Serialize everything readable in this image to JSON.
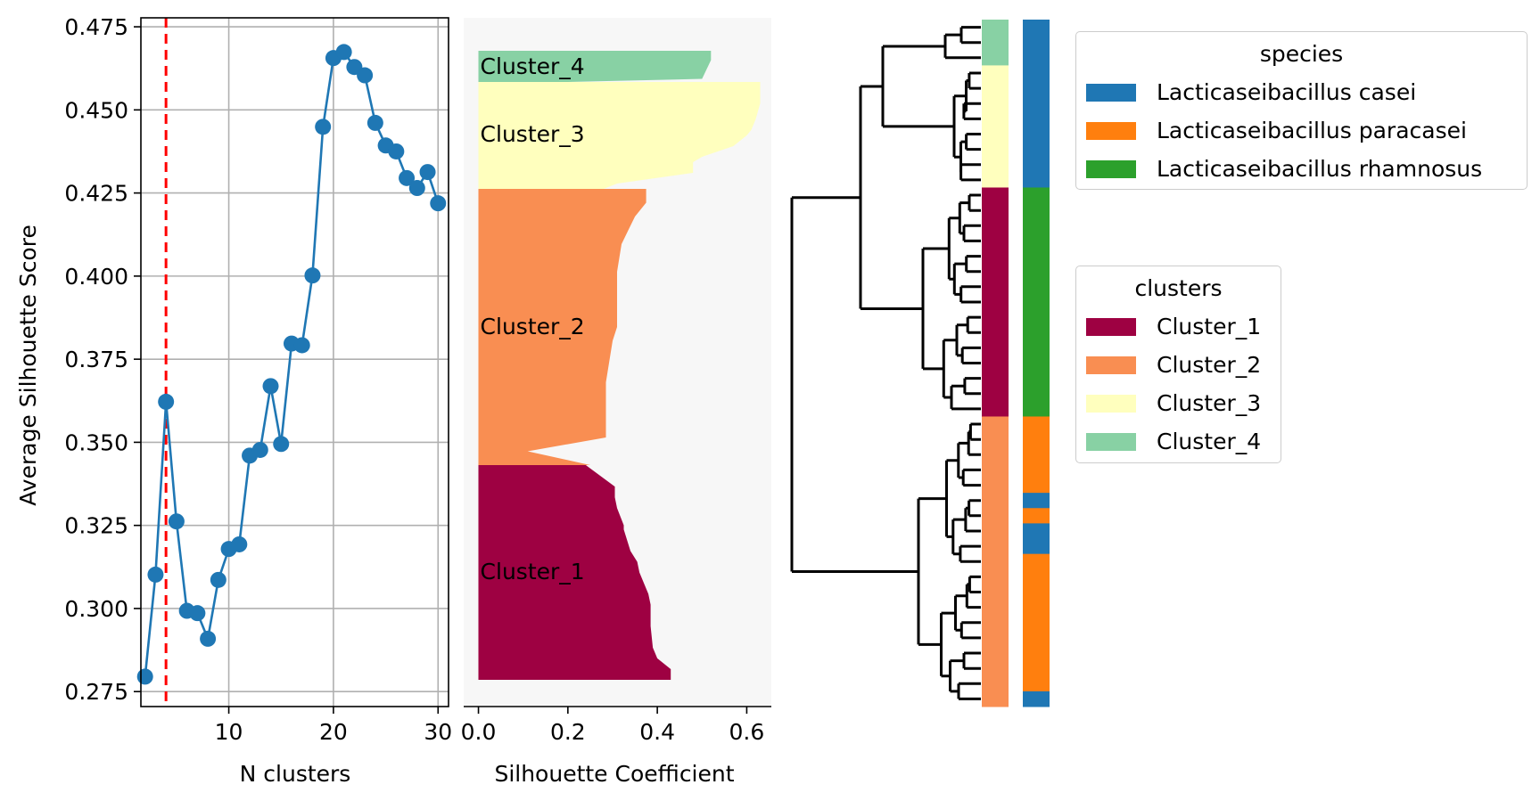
{
  "chart_data": [
    {
      "type": "line",
      "xlabel": "N clusters",
      "ylabel": "Average Silhouette Score",
      "xlim": [
        1.6,
        31.0
      ],
      "ylim": [
        0.2705,
        0.4777
      ],
      "xticks": [
        10,
        20,
        30
      ],
      "yticks": [
        0.275,
        0.3,
        0.325,
        0.35,
        0.375,
        0.4,
        0.425,
        0.45,
        0.475
      ],
      "grid": true,
      "vline": {
        "x": 4,
        "color": "#ff0000",
        "style": "dashed"
      },
      "series": [
        {
          "color": "#1f77b4",
          "x": [
            2,
            3,
            4,
            5,
            6,
            7,
            8,
            9,
            10,
            11,
            12,
            13,
            14,
            15,
            16,
            17,
            18,
            19,
            20,
            21,
            22,
            23,
            24,
            25,
            26,
            27,
            28,
            29,
            30
          ],
          "y": [
            0.2795,
            0.3102,
            0.3622,
            0.3262,
            0.2993,
            0.2986,
            0.2909,
            0.3086,
            0.3179,
            0.3193,
            0.346,
            0.3477,
            0.3669,
            0.3495,
            0.3797,
            0.3792,
            0.4002,
            0.4449,
            0.4656,
            0.4674,
            0.4629,
            0.4604,
            0.4461,
            0.4393,
            0.4375,
            0.4295,
            0.4265,
            0.4313,
            0.4219
          ]
        }
      ]
    },
    {
      "type": "area",
      "xlabel": "Silhouette Coefficient",
      "ylabel": "",
      "xlim": [
        -0.033,
        0.655
      ],
      "xticks": [
        0.0,
        0.2,
        0.4,
        0.6
      ],
      "xtick_labels": [
        "0.0",
        "0.2",
        "0.4",
        "0.6"
      ],
      "background": "#f7f7f7",
      "clusters": [
        {
          "name": "Cluster_1",
          "color": "#9e0142",
          "profile": [
            [
              0.43,
              0.0
            ],
            [
              0.43,
              0.05
            ],
            [
              0.4,
              0.1
            ],
            [
              0.39,
              0.15
            ],
            [
              0.385,
              0.25
            ],
            [
              0.385,
              0.35
            ],
            [
              0.38,
              0.4
            ],
            [
              0.36,
              0.5
            ],
            [
              0.355,
              0.55
            ],
            [
              0.34,
              0.6
            ],
            [
              0.325,
              0.7
            ],
            [
              0.325,
              0.72
            ],
            [
              0.31,
              0.8
            ],
            [
              0.305,
              0.85
            ],
            [
              0.305,
              0.9
            ],
            [
              0.24,
              1.0
            ]
          ]
        },
        {
          "name": "Cluster_2",
          "color": "#f98e52",
          "profile": [
            [
              0.25,
              0.0
            ],
            [
              0.11,
              0.05
            ],
            [
              0.285,
              0.1
            ],
            [
              0.285,
              0.3
            ],
            [
              0.3,
              0.45
            ],
            [
              0.31,
              0.5
            ],
            [
              0.31,
              0.7
            ],
            [
              0.315,
              0.75
            ],
            [
              0.32,
              0.8
            ],
            [
              0.335,
              0.85
            ],
            [
              0.35,
              0.9
            ],
            [
              0.375,
              0.95
            ],
            [
              0.375,
              1.0
            ]
          ]
        },
        {
          "name": "Cluster_3",
          "color": "#ffffbe",
          "profile": [
            [
              0.28,
              0.0
            ],
            [
              0.31,
              0.05
            ],
            [
              0.48,
              0.15
            ],
            [
              0.48,
              0.25
            ],
            [
              0.5,
              0.3
            ],
            [
              0.57,
              0.4
            ],
            [
              0.6,
              0.5
            ],
            [
              0.61,
              0.55
            ],
            [
              0.62,
              0.65
            ],
            [
              0.63,
              0.8
            ],
            [
              0.63,
              1.0
            ]
          ]
        },
        {
          "name": "Cluster_4",
          "color": "#88d1a4",
          "profile": [
            [
              0.2,
              0.0
            ],
            [
              0.5,
              0.1
            ],
            [
              0.52,
              0.7
            ],
            [
              0.52,
              1.0
            ]
          ]
        }
      ]
    },
    {
      "type": "dendrogram",
      "leaf_colors_clusters": {
        "#88d1a4": 3,
        "#ffffbe": 8,
        "#9e0142": 15,
        "#f98e52": 19
      },
      "leaf_colors_species": {
        "#1f77b4": 11,
        "#2ca02c": 15,
        "#ff7f0e": 5,
        "#1f77b4_2": 1,
        "#ff7f0e_2": 1,
        "#1f77b4_3": 2,
        "#ff7f0e_3": 9,
        "#1f77b4_4": 1
      }
    }
  ],
  "legends": {
    "species": {
      "title": "species",
      "items": [
        {
          "label": "Lacticaseibacillus casei",
          "color": "#1f77b4"
        },
        {
          "label": "Lacticaseibacillus paracasei",
          "color": "#ff7f0e"
        },
        {
          "label": "Lacticaseibacillus rhamnosus",
          "color": "#2ca02c"
        }
      ]
    },
    "clusters": {
      "title": "clusters",
      "items": [
        {
          "label": "Cluster_1",
          "color": "#9e0142"
        },
        {
          "label": "Cluster_2",
          "color": "#f98e52"
        },
        {
          "label": "Cluster_3",
          "color": "#ffffbe"
        },
        {
          "label": "Cluster_4",
          "color": "#88d1a4"
        }
      ]
    }
  }
}
